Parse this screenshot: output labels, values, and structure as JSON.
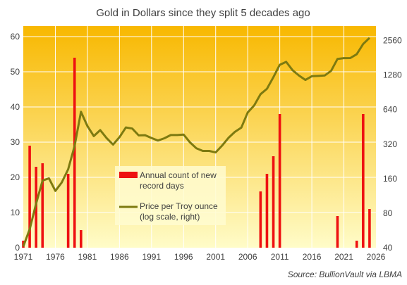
{
  "chart_data": {
    "type": "bar+line",
    "title": "Gold in Dollars since they split 5 decades ago",
    "source": "Source: BullionVault via LBMA",
    "x_tick_labels": [
      "1971",
      "1976",
      "1981",
      "1986",
      "1991",
      "1996",
      "2001",
      "2006",
      "2011",
      "2016",
      "2021",
      "2026"
    ],
    "x_ticks": [
      1971,
      1976,
      1981,
      1986,
      1991,
      1996,
      2001,
      2006,
      2011,
      2016,
      2021,
      2026
    ],
    "xlim": [
      1971,
      2026
    ],
    "left_axis": {
      "ticks": [
        0,
        10,
        20,
        30,
        40,
        50,
        60
      ],
      "tick_labels": [
        "0",
        "10",
        "20",
        "30",
        "40",
        "50",
        "60"
      ],
      "ylim": [
        0,
        63
      ]
    },
    "right_axis": {
      "scale": "log",
      "ticks": [
        40,
        80,
        160,
        320,
        640,
        1280,
        2560
      ],
      "tick_labels": [
        "40",
        "80",
        "160",
        "320",
        "640",
        "1280",
        "2560"
      ],
      "ylim": [
        40,
        3424
      ]
    },
    "bars": {
      "name": "Annual count of new record days",
      "color": "#ee1111",
      "x": [
        1971,
        1972,
        1973,
        1974,
        1978,
        1979,
        1980,
        2008,
        2009,
        2010,
        2011,
        2020,
        2023,
        2024,
        2025
      ],
      "values": [
        2,
        29,
        23,
        24,
        21,
        54,
        5,
        16,
        21,
        26,
        38,
        9,
        2,
        38,
        11
      ]
    },
    "line": {
      "name": "Price per Troy ounce (log scale, right)",
      "color": "#7d7a10",
      "x": [
        1971,
        1972,
        1973,
        1974,
        1975,
        1976,
        1977,
        1978,
        1979,
        1980,
        1981,
        1982,
        1983,
        1984,
        1985,
        1986,
        1987,
        1988,
        1989,
        1990,
        1991,
        1992,
        1993,
        1994,
        1995,
        1996,
        1997,
        1998,
        1999,
        2000,
        2001,
        2002,
        2003,
        2004,
        2005,
        2006,
        2007,
        2008,
        2009,
        2010,
        2011,
        2012,
        2013,
        2014,
        2015,
        2016,
        2017,
        2018,
        2019,
        2020,
        2021,
        2022,
        2023,
        2024,
        2025
      ],
      "values": [
        41,
        58,
        97,
        154,
        161,
        125,
        148,
        193,
        307,
        612,
        460,
        376,
        424,
        361,
        317,
        368,
        447,
        437,
        381,
        383,
        362,
        344,
        360,
        384,
        384,
        388,
        331,
        294,
        279,
        279,
        271,
        310,
        363,
        409,
        445,
        604,
        695,
        872,
        972,
        1225,
        1572,
        1669,
        1411,
        1266,
        1160,
        1251,
        1257,
        1268,
        1393,
        1770,
        1799,
        1800,
        1943,
        2386,
        2700
      ]
    },
    "legend": {
      "placement": "center-left",
      "entries": [
        "Annual count of new record days",
        "Price per Troy ounce (log scale, right)"
      ]
    },
    "grid": true
  },
  "colors": {
    "plot_top": "#f8b800",
    "plot_bottom": "#fffcc8",
    "gridline": "#ffffff",
    "text": "#404040"
  }
}
